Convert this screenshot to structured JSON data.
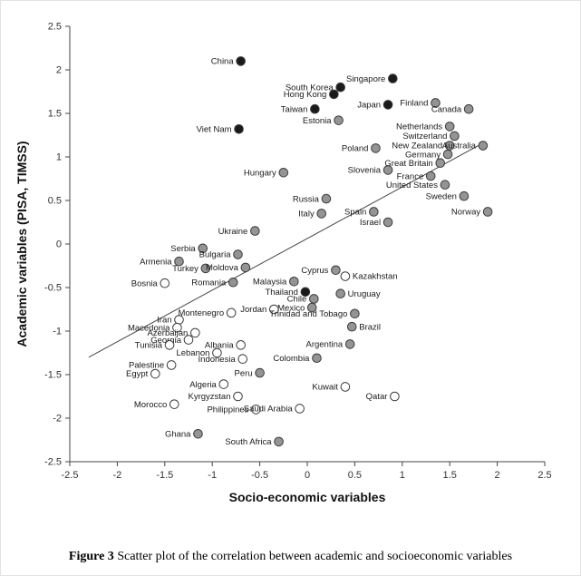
{
  "figure": {
    "caption_label": "Figure 3",
    "caption_text": " Scatter plot of the correlation between academic and socioeconomic variables"
  },
  "chart_data": {
    "type": "scatter",
    "title": "",
    "xlabel": "Socio-economic variables",
    "ylabel": "Academic variables (PISA, TIMSS)",
    "xlim": [
      -2.5,
      2.5
    ],
    "ylim": [
      -2.5,
      2.5
    ],
    "xticks": [
      -2.5,
      -2,
      -1.5,
      -1,
      -0.5,
      0,
      0.5,
      1,
      1.5,
      2,
      2.5
    ],
    "yticks": [
      2.5,
      2,
      1.5,
      1,
      0.5,
      0,
      -0.5,
      -1,
      -1.5,
      -2,
      -2.5
    ],
    "grid": false,
    "legend": "none",
    "axis_color": "#444444",
    "marker_colors": {
      "black": "#1a1a1a",
      "gray": "#949494",
      "white": "#ffffff",
      "stroke": "#3c3c3c"
    },
    "trendline": {
      "x1": -2.3,
      "y1": -1.3,
      "x2": 1.8,
      "y2": 1.13,
      "color": "#444444"
    },
    "points": [
      {
        "label": "China",
        "x": -0.7,
        "y": 2.1,
        "fill": "black",
        "side": "left"
      },
      {
        "label": "South Korea",
        "x": 0.35,
        "y": 1.8,
        "fill": "black",
        "side": "left"
      },
      {
        "label": "Singapore",
        "x": 0.9,
        "y": 1.9,
        "fill": "black",
        "side": "left"
      },
      {
        "label": "Hong Kong",
        "x": 0.28,
        "y": 1.72,
        "fill": "black",
        "side": "left"
      },
      {
        "label": "Japan",
        "x": 0.85,
        "y": 1.6,
        "fill": "black",
        "side": "left"
      },
      {
        "label": "Finland",
        "x": 1.35,
        "y": 1.62,
        "fill": "gray",
        "side": "left"
      },
      {
        "label": "Taiwan",
        "x": 0.08,
        "y": 1.55,
        "fill": "black",
        "side": "left"
      },
      {
        "label": "Canada",
        "x": 1.7,
        "y": 1.55,
        "fill": "gray",
        "side": "left"
      },
      {
        "label": "Estonia",
        "x": 0.33,
        "y": 1.42,
        "fill": "gray",
        "side": "left"
      },
      {
        "label": "Viet Nam",
        "x": -0.72,
        "y": 1.32,
        "fill": "black",
        "side": "left"
      },
      {
        "label": "Netherlands",
        "x": 1.5,
        "y": 1.35,
        "fill": "gray",
        "side": "left"
      },
      {
        "label": "Switzerland",
        "x": 1.55,
        "y": 1.24,
        "fill": "gray",
        "side": "left"
      },
      {
        "label": "New Zealand",
        "x": 1.5,
        "y": 1.13,
        "fill": "gray",
        "side": "left"
      },
      {
        "label": "Australia",
        "x": 1.85,
        "y": 1.13,
        "fill": "gray",
        "side": "left"
      },
      {
        "label": "Poland",
        "x": 0.72,
        "y": 1.1,
        "fill": "gray",
        "side": "left"
      },
      {
        "label": "Germany",
        "x": 1.48,
        "y": 1.03,
        "fill": "gray",
        "side": "left"
      },
      {
        "label": "Great Britain",
        "x": 1.4,
        "y": 0.93,
        "fill": "gray",
        "side": "left"
      },
      {
        "label": "Slovenia",
        "x": 0.85,
        "y": 0.85,
        "fill": "gray",
        "side": "left"
      },
      {
        "label": "Hungary",
        "x": -0.25,
        "y": 0.82,
        "fill": "gray",
        "side": "left"
      },
      {
        "label": "France",
        "x": 1.3,
        "y": 0.78,
        "fill": "gray",
        "side": "left"
      },
      {
        "label": "United States",
        "x": 1.45,
        "y": 0.68,
        "fill": "gray",
        "side": "left"
      },
      {
        "label": "Russia",
        "x": 0.2,
        "y": 0.52,
        "fill": "gray",
        "side": "left"
      },
      {
        "label": "Sweden",
        "x": 1.65,
        "y": 0.55,
        "fill": "gray",
        "side": "left"
      },
      {
        "label": "Italy",
        "x": 0.15,
        "y": 0.35,
        "fill": "gray",
        "side": "left"
      },
      {
        "label": "Spain",
        "x": 0.7,
        "y": 0.37,
        "fill": "gray",
        "side": "left"
      },
      {
        "label": "Norway",
        "x": 1.9,
        "y": 0.37,
        "fill": "gray",
        "side": "left"
      },
      {
        "label": "Israel",
        "x": 0.85,
        "y": 0.25,
        "fill": "gray",
        "side": "left"
      },
      {
        "label": "Ukraine",
        "x": -0.55,
        "y": 0.15,
        "fill": "gray",
        "side": "left"
      },
      {
        "label": "Serbia",
        "x": -1.1,
        "y": -0.05,
        "fill": "gray",
        "side": "left"
      },
      {
        "label": "Bulgaria",
        "x": -0.73,
        "y": -0.12,
        "fill": "gray",
        "side": "left"
      },
      {
        "label": "Armenia",
        "x": -1.35,
        "y": -0.2,
        "fill": "gray",
        "side": "left"
      },
      {
        "label": "Turkey",
        "x": -1.07,
        "y": -0.28,
        "fill": "gray",
        "side": "left"
      },
      {
        "label": "Moldova",
        "x": -0.65,
        "y": -0.27,
        "fill": "gray",
        "side": "left"
      },
      {
        "label": "Cyprus",
        "x": 0.3,
        "y": -0.3,
        "fill": "gray",
        "side": "left"
      },
      {
        "label": "Kazakhstan",
        "x": 0.4,
        "y": -0.37,
        "fill": "white",
        "side": "right"
      },
      {
        "label": "Bosnia",
        "x": -1.5,
        "y": -0.45,
        "fill": "white",
        "side": "left"
      },
      {
        "label": "Romania",
        "x": -0.78,
        "y": -0.44,
        "fill": "gray",
        "side": "left"
      },
      {
        "label": "Malaysia",
        "x": -0.14,
        "y": -0.43,
        "fill": "gray",
        "side": "left"
      },
      {
        "label": "Thailand",
        "x": -0.02,
        "y": -0.55,
        "fill": "black",
        "side": "left"
      },
      {
        "label": "Uruguay",
        "x": 0.35,
        "y": -0.57,
        "fill": "gray",
        "side": "right"
      },
      {
        "label": "Chile",
        "x": 0.07,
        "y": -0.63,
        "fill": "gray",
        "side": "left"
      },
      {
        "label": "Mexico",
        "x": 0.05,
        "y": -0.73,
        "fill": "gray",
        "side": "left"
      },
      {
        "label": "Jordan",
        "x": -0.35,
        "y": -0.75,
        "fill": "white",
        "side": "left"
      },
      {
        "label": "Trinidad and Tobago",
        "x": 0.5,
        "y": -0.8,
        "fill": "gray",
        "side": "left"
      },
      {
        "label": "Montenegro",
        "x": -0.8,
        "y": -0.79,
        "fill": "white",
        "side": "left"
      },
      {
        "label": "Iran",
        "x": -1.35,
        "y": -0.87,
        "fill": "white",
        "side": "left"
      },
      {
        "label": "Macedonia",
        "x": -1.37,
        "y": -0.96,
        "fill": "white",
        "side": "left"
      },
      {
        "label": "Azerbaijan",
        "x": -1.18,
        "y": -1.02,
        "fill": "white",
        "side": "left"
      },
      {
        "label": "Georgia",
        "x": -1.25,
        "y": -1.1,
        "fill": "white",
        "side": "left"
      },
      {
        "label": "Brazil",
        "x": 0.47,
        "y": -0.95,
        "fill": "gray",
        "side": "right"
      },
      {
        "label": "Tunisia",
        "x": -1.45,
        "y": -1.16,
        "fill": "white",
        "side": "left"
      },
      {
        "label": "Albania",
        "x": -0.7,
        "y": -1.16,
        "fill": "white",
        "side": "left"
      },
      {
        "label": "Lebanon",
        "x": -0.95,
        "y": -1.25,
        "fill": "white",
        "side": "left"
      },
      {
        "label": "Argentina",
        "x": 0.45,
        "y": -1.15,
        "fill": "gray",
        "side": "left"
      },
      {
        "label": "Indonesia",
        "x": -0.68,
        "y": -1.32,
        "fill": "white",
        "side": "left"
      },
      {
        "label": "Colombia",
        "x": 0.1,
        "y": -1.31,
        "fill": "gray",
        "side": "left"
      },
      {
        "label": "Palestine",
        "x": -1.43,
        "y": -1.39,
        "fill": "white",
        "side": "left"
      },
      {
        "label": "Egypt",
        "x": -1.6,
        "y": -1.49,
        "fill": "white",
        "side": "left"
      },
      {
        "label": "Peru",
        "x": -0.5,
        "y": -1.48,
        "fill": "gray",
        "side": "left"
      },
      {
        "label": "Algeria",
        "x": -0.88,
        "y": -1.61,
        "fill": "white",
        "side": "left"
      },
      {
        "label": "Kuwait",
        "x": 0.4,
        "y": -1.64,
        "fill": "white",
        "side": "left"
      },
      {
        "label": "Qatar",
        "x": 0.92,
        "y": -1.75,
        "fill": "white",
        "side": "left"
      },
      {
        "label": "Kyrgyzstan",
        "x": -0.73,
        "y": -1.75,
        "fill": "white",
        "side": "left"
      },
      {
        "label": "Morocco",
        "x": -1.4,
        "y": -1.84,
        "fill": "white",
        "side": "left"
      },
      {
        "label": "Philippines",
        "x": -0.54,
        "y": -1.9,
        "fill": "white",
        "side": "left"
      },
      {
        "label": "Saudi Arabia",
        "x": -0.08,
        "y": -1.89,
        "fill": "white",
        "side": "left"
      },
      {
        "label": "Ghana",
        "x": -1.15,
        "y": -2.18,
        "fill": "gray",
        "side": "left"
      },
      {
        "label": "South Africa",
        "x": -0.3,
        "y": -2.27,
        "fill": "gray",
        "side": "left"
      }
    ]
  }
}
